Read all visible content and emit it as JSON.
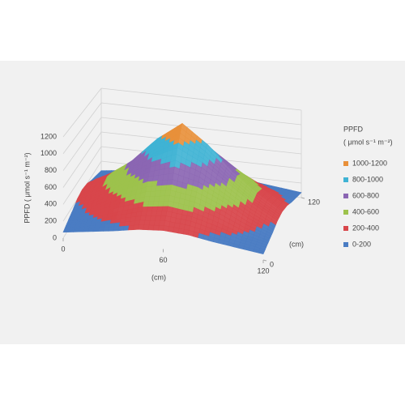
{
  "chart_data": {
    "type": "surface",
    "zlabel": "PPFD ( μmol s⁻¹ m⁻²)",
    "xlabel": "(cm)",
    "ylabel": "(cm)",
    "legend_title": "PPFD",
    "legend_subtitle": "( μmol s⁻¹ m⁻²)",
    "xlim": [
      0,
      120
    ],
    "xticks": [
      0,
      60,
      120
    ],
    "ylim": [
      0,
      120
    ],
    "yticks": [
      0,
      120
    ],
    "zlim": [
      0,
      1200
    ],
    "zticks": [
      0,
      200,
      400,
      600,
      800,
      1000,
      1200
    ],
    "x": [
      0,
      15,
      30,
      45,
      60,
      75,
      90,
      105,
      120
    ],
    "y": [
      0,
      15,
      30,
      45,
      60,
      75,
      90,
      105,
      120
    ],
    "z": [
      [
        70,
        110,
        150,
        200,
        220,
        200,
        150,
        110,
        70
      ],
      [
        110,
        180,
        290,
        380,
        420,
        380,
        290,
        180,
        110
      ],
      [
        150,
        290,
        460,
        600,
        660,
        600,
        460,
        290,
        150
      ],
      [
        200,
        380,
        600,
        820,
        970,
        820,
        600,
        380,
        200
      ],
      [
        220,
        420,
        660,
        970,
        1200,
        970,
        660,
        420,
        220
      ],
      [
        200,
        380,
        600,
        820,
        970,
        820,
        600,
        380,
        200
      ],
      [
        150,
        290,
        460,
        600,
        660,
        600,
        460,
        290,
        150
      ],
      [
        110,
        180,
        290,
        380,
        420,
        380,
        290,
        180,
        110
      ],
      [
        70,
        110,
        150,
        200,
        220,
        200,
        150,
        110,
        70
      ]
    ],
    "bands": [
      {
        "name": "1000-1200",
        "min": 1000,
        "max": 1200,
        "color": "#e8903a"
      },
      {
        "name": "800-1000",
        "min": 800,
        "max": 1000,
        "color": "#3fb3d4"
      },
      {
        "name": "600-800",
        "min": 600,
        "max": 800,
        "color": "#8b66b3"
      },
      {
        "name": "400-600",
        "min": 400,
        "max": 600,
        "color": "#9dc24c"
      },
      {
        "name": "200-400",
        "min": 200,
        "max": 400,
        "color": "#d8464b"
      },
      {
        "name": "0-200",
        "min": 0,
        "max": 200,
        "color": "#4a7cc3"
      }
    ]
  }
}
